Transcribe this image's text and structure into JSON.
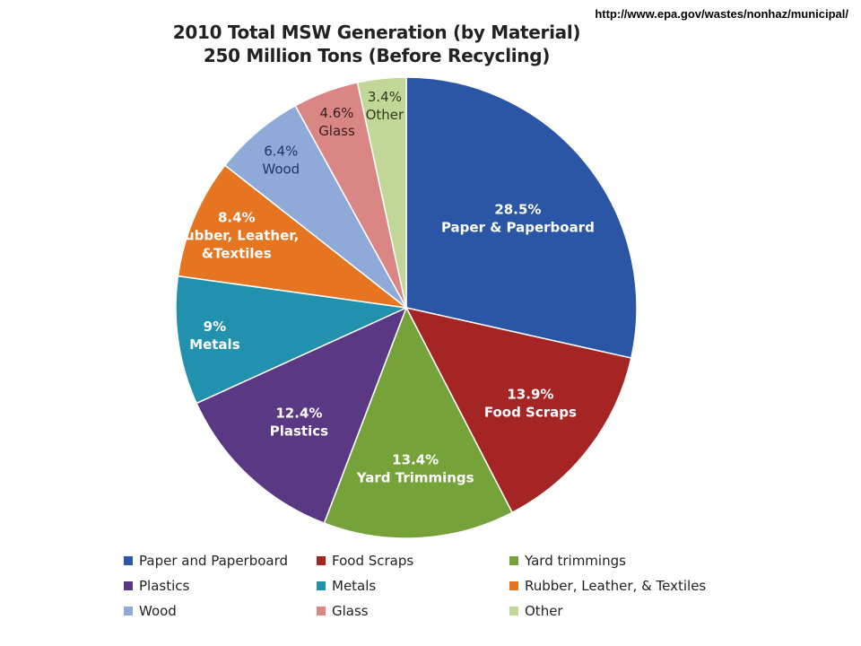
{
  "source_url": "http://www.epa.gov/wastes/nonhaz/municipal/",
  "chart_data": {
    "type": "pie",
    "title": "2010 Total MSW Generation (by Material)",
    "subtitle": "250 Million Tons (Before Recycling)",
    "slices": [
      {
        "label_pct": "28.5%",
        "label_name": "Paper & Paperboard",
        "value": 28.5,
        "color": "#2A56A5",
        "text_color": "#ffffff"
      },
      {
        "label_pct": "13.9%",
        "label_name": "Food Scraps",
        "value": 13.9,
        "color": "#A52525",
        "text_color": "#ffffff"
      },
      {
        "label_pct": "13.4%",
        "label_name": "Yard Trimmings",
        "value": 13.4,
        "color": "#76A23A",
        "text_color": "#ffffff"
      },
      {
        "label_pct": "12.4%",
        "label_name": "Plastics",
        "value": 12.4,
        "color": "#5A3883",
        "text_color": "#ffffff"
      },
      {
        "label_pct": "9%",
        "label_name": "Metals",
        "value": 9.0,
        "color": "#2291AE",
        "text_color": "#ffffff"
      },
      {
        "label_pct": "8.4%",
        "label_name": "Rubber, Leather,",
        "label_name2": "&Textiles",
        "value": 8.4,
        "color": "#E57521",
        "text_color": "#ffffff"
      },
      {
        "label_pct": "6.4%",
        "label_name": "Wood",
        "value": 6.4,
        "color": "#8FAAD9",
        "text_color": "#1F3864"
      },
      {
        "label_pct": "4.6%",
        "label_name": "Glass",
        "value": 4.6,
        "color": "#DA8685",
        "text_color": "#3a1e1e"
      },
      {
        "label_pct": "3.4%",
        "label_name": "Other",
        "value": 3.4,
        "color": "#C2D797",
        "text_color": "#2f3a1e"
      }
    ],
    "legend": [
      {
        "label": "Paper and Paperboard",
        "color": "#2A56A5"
      },
      {
        "label": "Food Scraps",
        "color": "#A52525"
      },
      {
        "label": "Yard trimmings",
        "color": "#76A23A"
      },
      {
        "label": "Plastics",
        "color": "#5A3883"
      },
      {
        "label": "Metals",
        "color": "#2291AE"
      },
      {
        "label": "Rubber, Leather, & Textiles",
        "color": "#E57521"
      },
      {
        "label": "Wood",
        "color": "#8FAAD9"
      },
      {
        "label": "Glass",
        "color": "#DA8685"
      },
      {
        "label": "Other",
        "color": "#C2D797"
      }
    ],
    "legend_placement": "bottom"
  }
}
